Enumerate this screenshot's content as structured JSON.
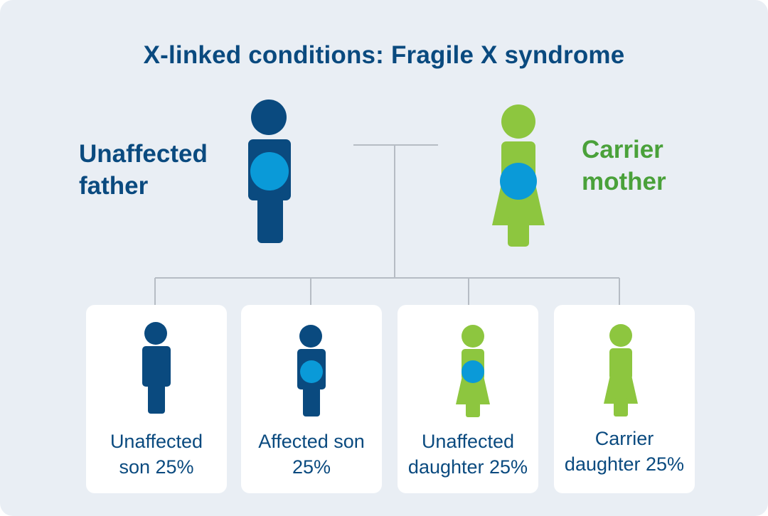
{
  "title": "X-linked conditions: Fragile X syndrome",
  "parents": {
    "father": {
      "line1": "Unaffected",
      "line2": "father",
      "color": "#0a4a7f",
      "marker": true
    },
    "mother": {
      "line1": "Carrier",
      "line2": "mother",
      "color": "#8dc63f",
      "label_color": "#4aa13a",
      "marker": true
    }
  },
  "marker_color": "#0a9ad8",
  "line_color": "#b6bcc4",
  "offspring": [
    {
      "line1": "Unaffected",
      "line2": "son 25%",
      "sex": "male",
      "marker": false
    },
    {
      "line1": "Affected son",
      "line2": "25%",
      "sex": "male",
      "marker": true
    },
    {
      "line1": "Unaffected",
      "line2": "daughter 25%",
      "sex": "female",
      "marker": true
    },
    {
      "line1": "Carrier",
      "line2": "daughter 25%",
      "sex": "female",
      "marker": false
    }
  ]
}
